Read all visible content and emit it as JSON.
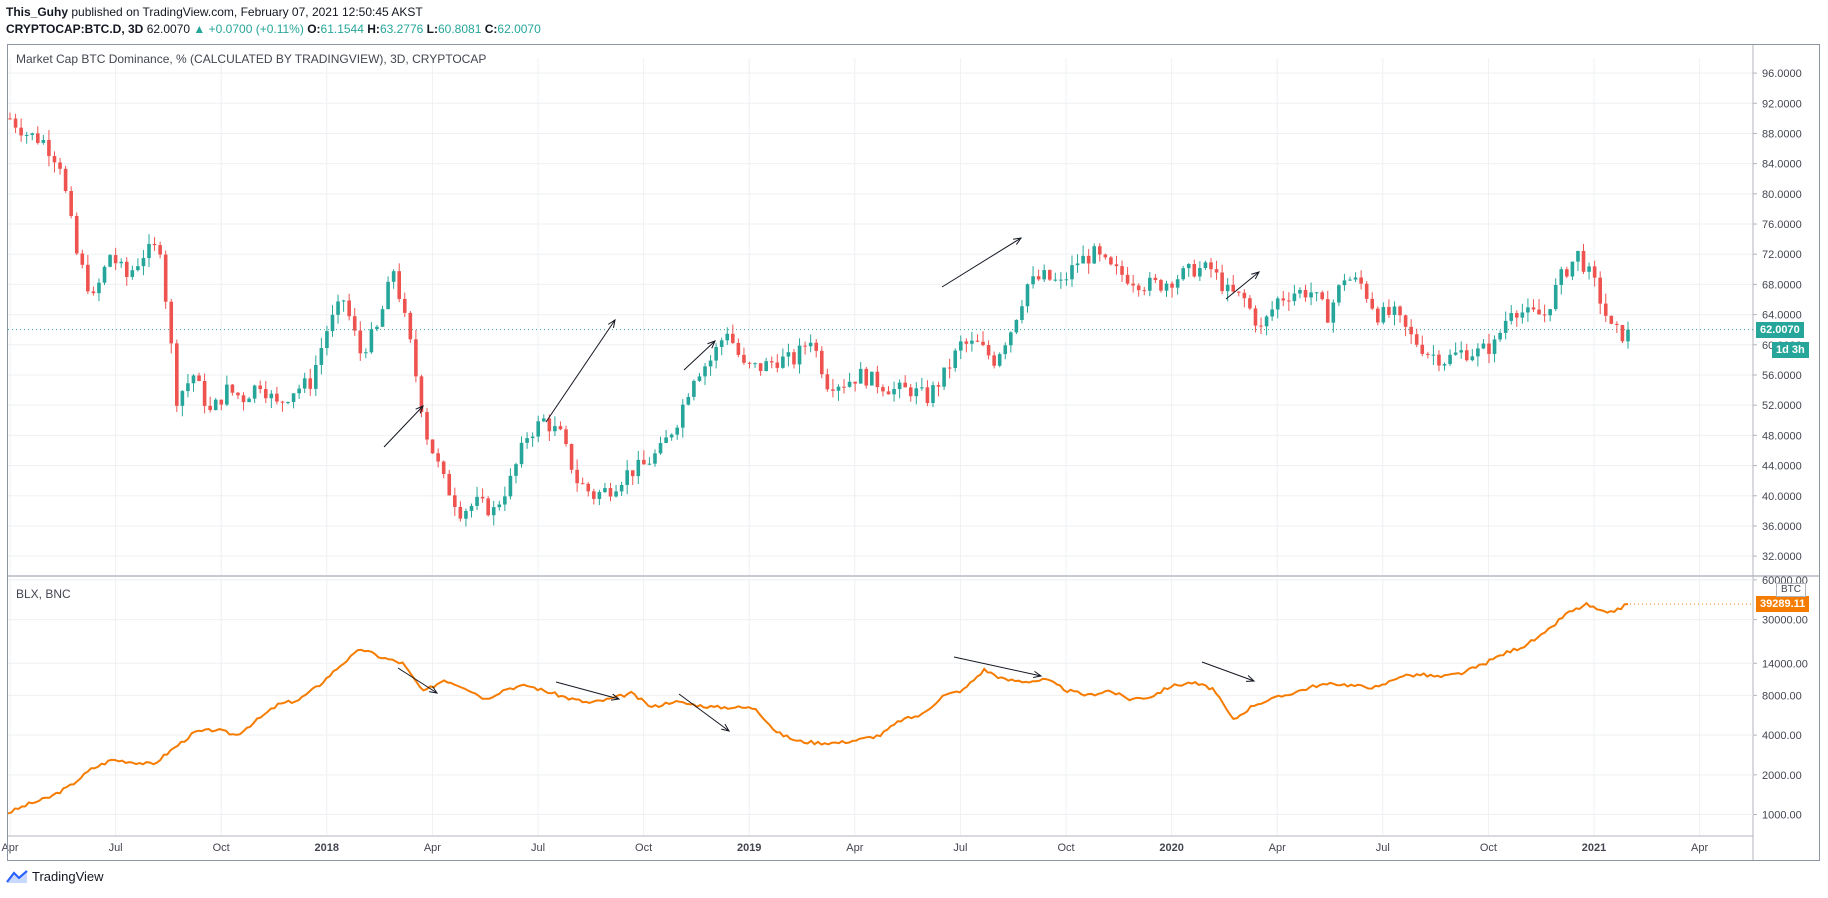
{
  "header": {
    "author": "This_Guhy",
    "published_text": "published on TradingView.com, February 07, 2021 12:50:45 AKST",
    "symbol": "CRYPTOCAP:BTC.D, 3D",
    "last": "62.0070",
    "change": "+0.0700 (+0.11%)",
    "o_label": "O:",
    "o": "61.1544",
    "h_label": "H:",
    "h": "63.2776",
    "l_label": "L:",
    "l": "60.8081",
    "c_label": "C:",
    "c": "62.0070"
  },
  "colors": {
    "up": "#26a69a",
    "down": "#ef5350",
    "blx": "#f57c00",
    "arrow": "#131722"
  },
  "main_pane": {
    "title": "Market Cap BTC Dominance, % (CALCULATED BY TRADINGVIEW), 3D, CRYPTOCAP",
    "price_badge": "62.0070",
    "timer_badge": "1d 3h"
  },
  "lower_pane": {
    "title": "BLX, BNC",
    "price_badge": "39289.11",
    "currency_label": "BTC"
  },
  "footer": {
    "brand": "TradingView",
    "logo_icon": "tradingview-logo-icon"
  },
  "chart_data": [
    {
      "type": "candlestick",
      "title": "Market Cap BTC Dominance, % (CALCULATED BY TRADINGVIEW), 3D, CRYPTOCAP",
      "y_axis_ticks": [
        "96.0000",
        "92.0000",
        "88.0000",
        "84.0000",
        "80.0000",
        "76.0000",
        "72.0000",
        "68.0000",
        "64.0000",
        "60.0000",
        "56.0000",
        "52.0000",
        "48.0000",
        "44.0000",
        "40.0000",
        "36.0000",
        "32.0000"
      ],
      "ylim": [
        29.5,
        98
      ],
      "x_ticks": [
        "Apr",
        "Jul",
        "Oct",
        "2018",
        "Apr",
        "Jul",
        "Oct",
        "2019",
        "Apr",
        "Jul",
        "Oct",
        "2020",
        "Apr",
        "Jul",
        "Oct",
        "2021",
        "Apr"
      ],
      "x_tick_months": [
        0,
        3,
        6,
        9,
        12,
        15,
        18,
        21,
        24,
        27,
        30,
        33,
        36,
        39,
        42,
        45,
        48
      ],
      "grid": true,
      "last_value": 62.007,
      "series_approx": [
        [
          0,
          90
        ],
        [
          1,
          88
        ],
        [
          2,
          87
        ],
        [
          3,
          84
        ],
        [
          4,
          72
        ],
        [
          5,
          66
        ],
        [
          6,
          72
        ],
        [
          7,
          69
        ],
        [
          8,
          72
        ],
        [
          9,
          73
        ],
        [
          10,
          53
        ],
        [
          11,
          56
        ],
        [
          12,
          51
        ],
        [
          13,
          54
        ],
        [
          14,
          53
        ],
        [
          15,
          55
        ],
        [
          16,
          52
        ],
        [
          17,
          54
        ],
        [
          18,
          55
        ],
        [
          19,
          62
        ],
        [
          20,
          66
        ],
        [
          21,
          59
        ],
        [
          22,
          62
        ],
        [
          23,
          70
        ],
        [
          24,
          60
        ],
        [
          25,
          48
        ],
        [
          26,
          42
        ],
        [
          27,
          38
        ],
        [
          28,
          39
        ],
        [
          29,
          38
        ],
        [
          30,
          42
        ],
        [
          31,
          48
        ],
        [
          32,
          50
        ],
        [
          33,
          48
        ],
        [
          34,
          42
        ],
        [
          35,
          40
        ],
        [
          36,
          41
        ],
        [
          37,
          43
        ],
        [
          38,
          44
        ],
        [
          39,
          46
        ],
        [
          40,
          50
        ],
        [
          41,
          56
        ],
        [
          42,
          58
        ],
        [
          43,
          62
        ],
        [
          44,
          57
        ],
        [
          45,
          57
        ],
        [
          46,
          58
        ],
        [
          47,
          58
        ],
        [
          48,
          61
        ],
        [
          49,
          55
        ],
        [
          50,
          55
        ],
        [
          51,
          56
        ],
        [
          52,
          55
        ],
        [
          53,
          54
        ],
        [
          54,
          54
        ],
        [
          55,
          53
        ],
        [
          56,
          56
        ],
        [
          57,
          60
        ],
        [
          58,
          60
        ],
        [
          59,
          58
        ],
        [
          60,
          62
        ],
        [
          61,
          68
        ],
        [
          62,
          69
        ],
        [
          63,
          68
        ],
        [
          64,
          71
        ],
        [
          65,
          72
        ],
        [
          66,
          70
        ],
        [
          67,
          69
        ],
        [
          68,
          68
        ],
        [
          69,
          68
        ],
        [
          70,
          69
        ],
        [
          71,
          70
        ],
        [
          72,
          70
        ],
        [
          73,
          67
        ],
        [
          74,
          66
        ],
        [
          75,
          62
        ],
        [
          76,
          66
        ],
        [
          77,
          67
        ],
        [
          78,
          67
        ],
        [
          79,
          64
        ],
        [
          80,
          69
        ],
        [
          81,
          68
        ],
        [
          82,
          64
        ],
        [
          83,
          64
        ],
        [
          84,
          61
        ],
        [
          85,
          59
        ],
        [
          86,
          58
        ],
        [
          87,
          59
        ],
        [
          88,
          59
        ],
        [
          89,
          60
        ],
        [
          90,
          65
        ],
        [
          91,
          64
        ],
        [
          92,
          64
        ],
        [
          93,
          69
        ],
        [
          94,
          72
        ],
        [
          95,
          68
        ],
        [
          96,
          62
        ],
        [
          97,
          61
        ]
      ],
      "series_x_unit": "candle index (first candle ~mid-Feb 2017, 3-day bars)"
    },
    {
      "type": "line",
      "title": "BLX, BNC",
      "scale": "log",
      "y_axis_ticks": [
        "60000.00",
        "30000.00",
        "14000.00",
        "8000.00",
        "4000.00",
        "2000.00",
        "1000.00"
      ],
      "ylim": [
        700,
        62000
      ],
      "last_value": 39289.11,
      "series_approx": [
        [
          0,
          1030
        ],
        [
          1,
          1200
        ],
        [
          2,
          1350
        ],
        [
          3,
          1650
        ],
        [
          4,
          2200
        ],
        [
          5,
          2600
        ],
        [
          6,
          2500
        ],
        [
          7,
          2400
        ],
        [
          8,
          3200
        ],
        [
          9,
          4200
        ],
        [
          10,
          4400
        ],
        [
          11,
          4000
        ],
        [
          12,
          5200
        ],
        [
          13,
          6800
        ],
        [
          14,
          7400
        ],
        [
          15,
          9600
        ],
        [
          16,
          13500
        ],
        [
          17,
          18000
        ],
        [
          18,
          15500
        ],
        [
          19,
          14000
        ],
        [
          20,
          8500
        ],
        [
          21,
          10500
        ],
        [
          22,
          9200
        ],
        [
          23,
          7500
        ],
        [
          24,
          9000
        ],
        [
          25,
          9500
        ],
        [
          26,
          8500
        ],
        [
          27,
          7600
        ],
        [
          28,
          7000
        ],
        [
          29,
          7500
        ],
        [
          30,
          8300
        ],
        [
          31,
          6500
        ],
        [
          32,
          7200
        ],
        [
          33,
          6800
        ],
        [
          34,
          6500
        ],
        [
          35,
          6500
        ],
        [
          36,
          6400
        ],
        [
          37,
          4200
        ],
        [
          38,
          3600
        ],
        [
          39,
          3500
        ],
        [
          40,
          3500
        ],
        [
          41,
          3700
        ],
        [
          42,
          4000
        ],
        [
          43,
          5200
        ],
        [
          44,
          5700
        ],
        [
          45,
          7900
        ],
        [
          46,
          8800
        ],
        [
          47,
          12500
        ],
        [
          48,
          10500
        ],
        [
          49,
          10200
        ],
        [
          50,
          10500
        ],
        [
          51,
          8700
        ],
        [
          52,
          8000
        ],
        [
          53,
          8700
        ],
        [
          54,
          7500
        ],
        [
          55,
          7800
        ],
        [
          56,
          9400
        ],
        [
          57,
          10000
        ],
        [
          58,
          9000
        ],
        [
          59,
          5200
        ],
        [
          60,
          6800
        ],
        [
          61,
          7600
        ],
        [
          62,
          8500
        ],
        [
          63,
          9500
        ],
        [
          64,
          9800
        ],
        [
          65,
          9400
        ],
        [
          66,
          9200
        ],
        [
          67,
          11200
        ],
        [
          68,
          11500
        ],
        [
          69,
          11000
        ],
        [
          70,
          11800
        ],
        [
          71,
          13700
        ],
        [
          72,
          16500
        ],
        [
          73,
          19000
        ],
        [
          74,
          23500
        ],
        [
          75,
          33000
        ],
        [
          76,
          39000
        ],
        [
          77,
          33000
        ],
        [
          78,
          39289
        ]
      ],
      "series_x_unit": "time index spanning Mar 2017 – Feb 2021"
    }
  ]
}
